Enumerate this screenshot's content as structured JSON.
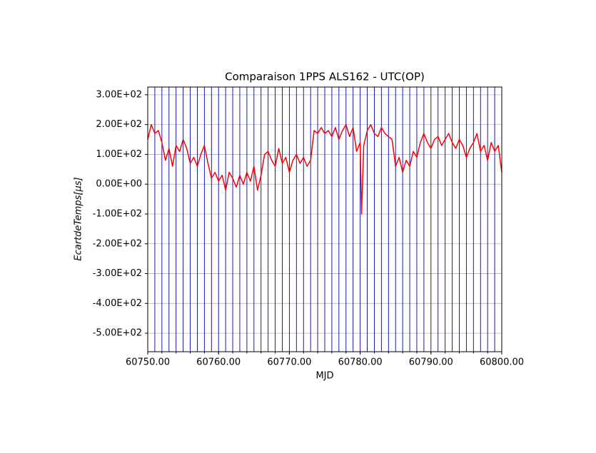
{
  "chart_data": {
    "type": "line",
    "title": "Comparaison 1PPS ALS162 - UTC(OP)",
    "x_label": "MJD",
    "y_label": "EcartdeTemps[μs]",
    "x": [
      60750,
      60750.5,
      60751,
      60751.5,
      60752,
      60752.5,
      60753,
      60753.5,
      60754,
      60754.5,
      60755,
      60755.5,
      60756,
      60756.5,
      60757,
      60757.5,
      60758,
      60758.5,
      60759,
      60759.5,
      60760,
      60760.5,
      60761,
      60761.5,
      60762,
      60762.5,
      60763,
      60763.5,
      60764,
      60764.5,
      60765,
      60765.5,
      60766,
      60766.5,
      60767,
      60767.5,
      60768,
      60768.5,
      60769,
      60769.5,
      60770,
      60770.5,
      60771,
      60771.5,
      60772,
      60772.5,
      60773,
      60773.5,
      60774,
      60774.5,
      60775,
      60775.5,
      60776,
      60776.5,
      60777,
      60777.5,
      60778,
      60778.5,
      60779,
      60779.5,
      60780,
      60780.2,
      60780.5,
      60781,
      60781.5,
      60782,
      60782.5,
      60783,
      60783.5,
      60784,
      60784.5,
      60785,
      60785.5,
      60786,
      60786.5,
      60787,
      60787.5,
      60788,
      60788.5,
      60789,
      60789.5,
      60790,
      60790.5,
      60791,
      60791.5,
      60792,
      60792.5,
      60793,
      60793.5,
      60794,
      60794.5,
      60795,
      60795.5,
      60796,
      60796.5,
      60797,
      60797.5,
      60798,
      60798.5,
      60799,
      60799.5,
      60800
    ],
    "series": [
      {
        "name": "ALS162 - UTC(OP)",
        "color": "#ff0000",
        "values": [
          150,
          200,
          170,
          180,
          140,
          80,
          120,
          60,
          130,
          110,
          150,
          120,
          70,
          90,
          60,
          100,
          130,
          70,
          20,
          40,
          10,
          30,
          -20,
          40,
          20,
          -10,
          30,
          0,
          40,
          10,
          60,
          -20,
          30,
          100,
          110,
          80,
          60,
          120,
          70,
          90,
          40,
          80,
          100,
          70,
          90,
          60,
          80,
          180,
          170,
          190,
          170,
          180,
          160,
          190,
          150,
          180,
          200,
          160,
          190,
          110,
          140,
          -100,
          130,
          180,
          200,
          170,
          160,
          190,
          170,
          160,
          150,
          60,
          90,
          40,
          80,
          60,
          110,
          90,
          140,
          170,
          140,
          120,
          150,
          160,
          130,
          150,
          170,
          140,
          120,
          150,
          130,
          90,
          120,
          140,
          170,
          110,
          130,
          80,
          140,
          110,
          130,
          40
        ]
      }
    ],
    "xlim": [
      60750,
      60800
    ],
    "ylim": [
      -562,
      326
    ],
    "xticks": [
      {
        "value": 60750,
        "label": "60750.00"
      },
      {
        "value": 60760,
        "label": "60760.00"
      },
      {
        "value": 60770,
        "label": "60770.00"
      },
      {
        "value": 60780,
        "label": "60780.00"
      },
      {
        "value": 60790,
        "label": "60790.00"
      },
      {
        "value": 60800,
        "label": "60800.00"
      }
    ],
    "minor_tick_interval": 2,
    "vline_interval": 1,
    "vline_color": "#0000aa",
    "yticks": [
      {
        "value": 300,
        "label": "3.00E+02"
      },
      {
        "value": 200,
        "label": "2.00E+02"
      },
      {
        "value": 100,
        "label": "1.00E+02"
      },
      {
        "value": 0,
        "label": "0.00E+00"
      },
      {
        "value": -100,
        "label": "-1.00E+02"
      },
      {
        "value": -200,
        "label": "-2.00E+02"
      },
      {
        "value": -300,
        "label": "-3.00E+02"
      },
      {
        "value": -400,
        "label": "-4.00E+02"
      },
      {
        "value": -500,
        "label": "-5.00E+02"
      }
    ],
    "grid": true
  }
}
